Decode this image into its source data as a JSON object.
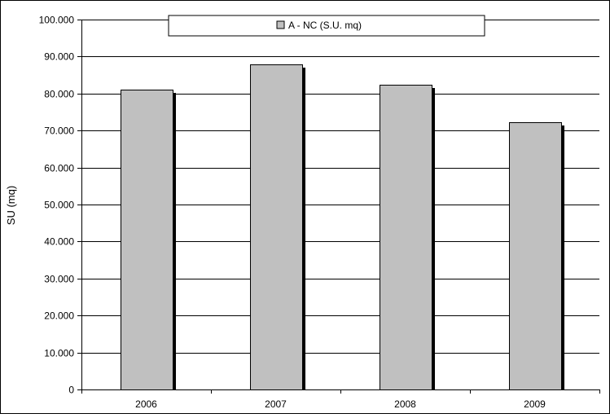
{
  "chart_data": {
    "type": "bar",
    "title": "",
    "xlabel": "",
    "ylabel": "SU (mq)",
    "categories": [
      "2006",
      "2007",
      "2008",
      "2009"
    ],
    "series": [
      {
        "name": "A - NC (S.U. mq)",
        "values": [
          81000,
          87800,
          82300,
          72300
        ]
      }
    ],
    "ylim": [
      0,
      100000
    ],
    "yticks": [
      0,
      10000,
      20000,
      30000,
      40000,
      50000,
      60000,
      70000,
      80000,
      90000,
      100000
    ],
    "ytick_labels": [
      "0",
      "10.000",
      "20.000",
      "30.000",
      "40.000",
      "50.000",
      "60.000",
      "70.000",
      "80.000",
      "90.000",
      "100.000"
    ],
    "grid": true,
    "legend_position": "top-center",
    "colors": {
      "bar": "#c0c0c0",
      "bar_shadow": "#000000",
      "grid": "#000000",
      "background": "#ffffff"
    }
  }
}
